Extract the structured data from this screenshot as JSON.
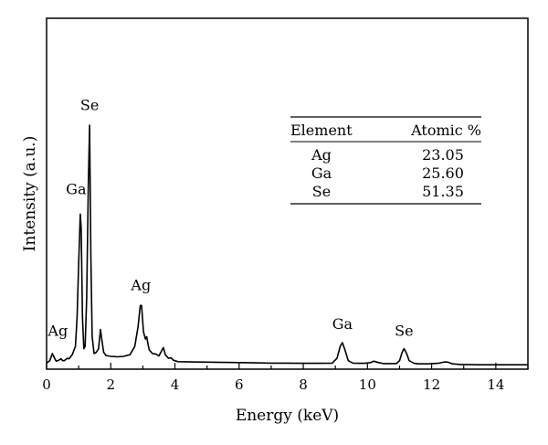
{
  "chart_data": {
    "type": "line",
    "title": "",
    "xlabel": "Energy (keV)",
    "ylabel": "Intensity (a.u.)",
    "xlim": [
      0,
      15
    ],
    "ylim": [
      0,
      100
    ],
    "xticks": [
      0,
      2,
      4,
      6,
      8,
      10,
      12,
      14
    ],
    "grid": false,
    "legend": "none",
    "line_color": "#000000",
    "series": [
      {
        "x": [
          0.0,
          0.1,
          0.18,
          0.25,
          0.3,
          0.38,
          0.45,
          0.5,
          0.55,
          0.6,
          0.65,
          0.7,
          0.8,
          0.9,
          0.95,
          1.0,
          1.05,
          1.08,
          1.12,
          1.16,
          1.2,
          1.25,
          1.3,
          1.34,
          1.38,
          1.42,
          1.48,
          1.55,
          1.62,
          1.68,
          1.72,
          1.78,
          1.85,
          2.0,
          2.2,
          2.4,
          2.6,
          2.75,
          2.85,
          2.92,
          2.96,
          3.02,
          3.08,
          3.12,
          3.16,
          3.2,
          3.3,
          3.4,
          3.5,
          3.58,
          3.64,
          3.7,
          3.8,
          3.88,
          3.95,
          4.1,
          4.5,
          5.0,
          5.5,
          6.0,
          6.5,
          7.0,
          7.5,
          8.0,
          8.5,
          8.9,
          9.05,
          9.15,
          9.22,
          9.3,
          9.4,
          9.55,
          9.7,
          9.9,
          10.1,
          10.2,
          10.35,
          10.5,
          10.7,
          10.9,
          11.0,
          11.08,
          11.14,
          11.22,
          11.3,
          11.45,
          11.6,
          11.9,
          12.2,
          12.4,
          12.5,
          12.65,
          12.9,
          13.5,
          14.0,
          14.5,
          15.0
        ],
        "y": [
          1.0,
          2.0,
          5.0,
          3.0,
          1.8,
          2.2,
          2.8,
          2.0,
          2.0,
          2.5,
          3.0,
          2.8,
          4.5,
          8.0,
          20.0,
          42.0,
          63.0,
          57.0,
          20.0,
          7.0,
          8.0,
          28.0,
          75.0,
          100.0,
          45.0,
          12.0,
          5.0,
          5.5,
          7.0,
          15.0,
          11.0,
          5.5,
          4.2,
          3.8,
          3.6,
          3.8,
          4.5,
          8.0,
          16.0,
          25.0,
          25.0,
          14.0,
          11.0,
          12.0,
          9.0,
          6.5,
          5.0,
          4.8,
          4.0,
          6.0,
          7.5,
          4.5,
          3.0,
          3.2,
          2.2,
          1.6,
          1.5,
          1.4,
          1.3,
          1.2,
          1.1,
          1.0,
          1.0,
          0.9,
          0.9,
          1.0,
          3.0,
          8.0,
          9.5,
          6.5,
          2.0,
          1.0,
          0.9,
          0.9,
          1.2,
          1.8,
          1.2,
          0.8,
          0.8,
          0.8,
          2.0,
          5.5,
          7.0,
          5.0,
          2.0,
          0.9,
          0.7,
          0.7,
          0.9,
          1.5,
          1.4,
          0.7,
          0.4,
          0.3,
          0.3,
          0.3,
          0.3
        ]
      }
    ],
    "peak_labels": [
      {
        "text": "Ag",
        "x": 0.35,
        "y": 10
      },
      {
        "text": "Ga",
        "x": 0.92,
        "y": 69
      },
      {
        "text": "Se",
        "x": 1.34,
        "y": 104
      },
      {
        "text": "Ag",
        "x": 2.94,
        "y": 29
      },
      {
        "text": "Ga",
        "x": 9.22,
        "y": 13
      },
      {
        "text": "Se",
        "x": 11.14,
        "y": 10
      }
    ],
    "table": {
      "headers": [
        "Element",
        "Atomic %"
      ],
      "rows": [
        [
          "Ag",
          "23.05"
        ],
        [
          "Ga",
          "25.60"
        ],
        [
          "Se",
          "51.35"
        ]
      ]
    }
  }
}
